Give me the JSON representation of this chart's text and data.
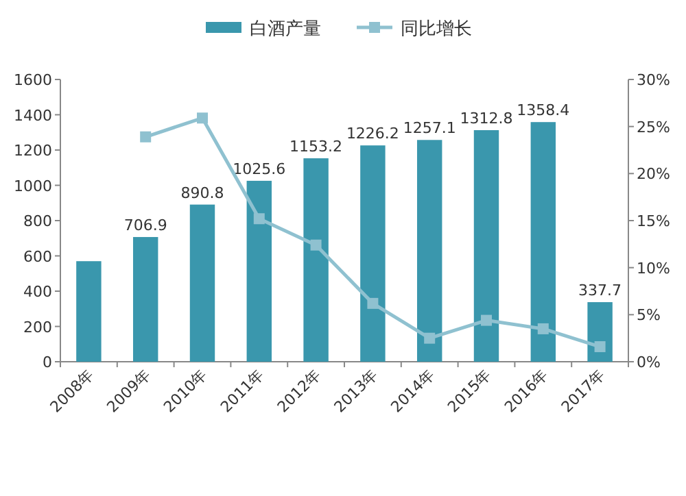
{
  "chart_data": {
    "type": "bar",
    "categories": [
      "2008年",
      "2009年",
      "2010年",
      "2011年",
      "2012年",
      "2013年",
      "2014年",
      "2015年",
      "2016年",
      "2017年"
    ],
    "series": [
      {
        "name": "白酒产量",
        "color": "#3a97ad",
        "values": [
          570,
          706.9,
          890.8,
          1025.6,
          1153.2,
          1226.2,
          1257.1,
          1312.8,
          1358.4,
          337.7
        ],
        "value_labels": [
          null,
          "706.9",
          "890.8",
          "1025.6",
          "1153.2",
          "1226.2",
          "1257.1",
          "1312.8",
          "1358.4",
          "337.7"
        ]
      },
      {
        "name": "同比增长",
        "type": "line",
        "axis": "y2",
        "color": "#8fc1d0",
        "marker": "square",
        "values": [
          null,
          23.9,
          25.9,
          15.2,
          12.4,
          6.2,
          2.5,
          4.4,
          3.5,
          1.6
        ]
      }
    ],
    "ylim": [
      0,
      1600
    ],
    "yticks": [
      0,
      200,
      400,
      600,
      800,
      1000,
      1200,
      1400,
      1600
    ],
    "y2lim": [
      0,
      30
    ],
    "y2ticks": [
      {
        "value": 0,
        "label": "0%"
      },
      {
        "value": 5,
        "label": "5%"
      },
      {
        "value": 10,
        "label": "10%"
      },
      {
        "value": 15,
        "label": "15%"
      },
      {
        "value": 20,
        "label": "20%"
      },
      {
        "value": 25,
        "label": "25%"
      },
      {
        "value": 30,
        "label": "30%"
      }
    ],
    "legend": "top",
    "grid": false
  }
}
